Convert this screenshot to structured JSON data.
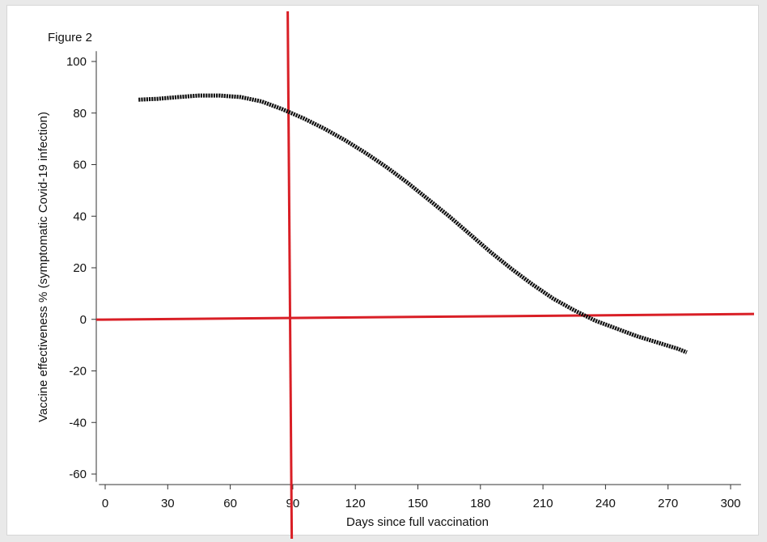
{
  "figure_label": "Figure 2",
  "chart_data": {
    "type": "line",
    "xlabel": "Days since full vaccination",
    "ylabel": "Vaccine effectiveness % (symptomatic Covid-19 infection)",
    "xlim": [
      -3,
      305
    ],
    "ylim": [
      -63,
      104
    ],
    "xticks": [
      0,
      30,
      60,
      90,
      120,
      150,
      180,
      210,
      240,
      270,
      300
    ],
    "yticks": [
      100,
      80,
      60,
      40,
      20,
      0,
      -20,
      -40,
      -60
    ],
    "grid": false,
    "series": [
      {
        "color": "#111111",
        "style": "dotted-thick",
        "x": [
          16,
          25,
          35,
          45,
          55,
          65,
          75,
          85,
          95,
          105,
          115,
          125,
          135,
          145,
          155,
          165,
          175,
          185,
          195,
          205,
          215,
          225,
          235,
          245,
          255,
          265,
          275,
          279
        ],
        "y": [
          85.2,
          85.5,
          86.2,
          86.8,
          86.8,
          86.2,
          84.5,
          81.5,
          78,
          74,
          69.5,
          64.5,
          59,
          53,
          46.5,
          40,
          33,
          26,
          19.5,
          13.5,
          8,
          3.5,
          -0.5,
          -3.5,
          -6.5,
          -9,
          -11.5,
          -12.8
        ]
      }
    ],
    "annotations": [
      {
        "type": "vertical-line",
        "x": 89.5,
        "color": "#d91f26"
      },
      {
        "type": "horizontal-line",
        "y": 0.5,
        "color": "#d91f26"
      }
    ]
  }
}
